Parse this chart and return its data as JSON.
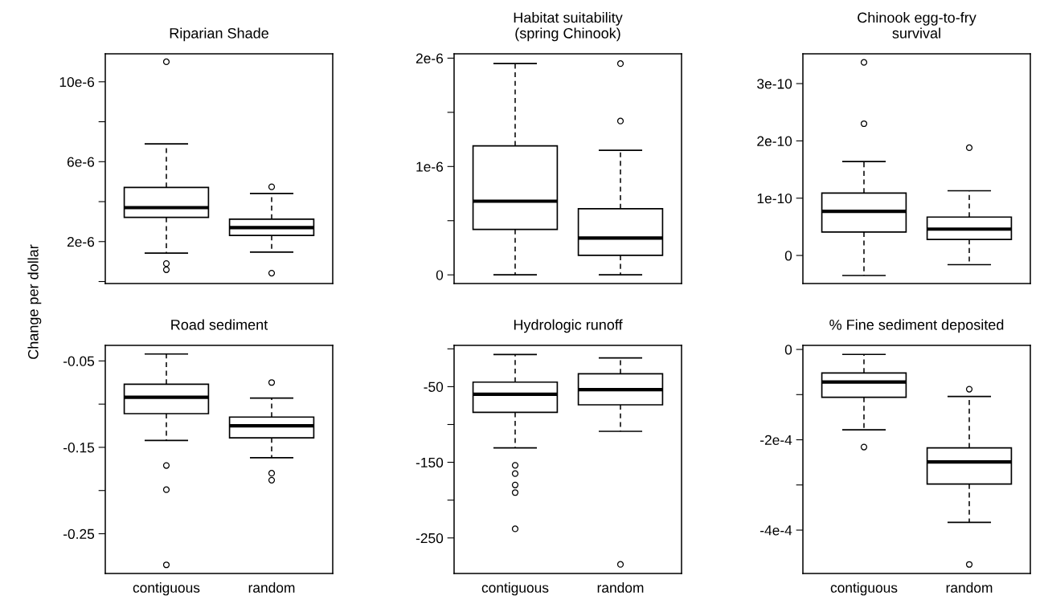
{
  "chart_data": [
    {
      "type": "box",
      "title": "Riparian Shade",
      "ylabel": "Change per dollar",
      "categories": [
        null,
        null
      ],
      "tick_labels": "y",
      "marker": "circle",
      "ylim": [
        -1e-07,
        1.14e-05
      ],
      "yticks": [
        {
          "value": 0,
          "label": null
        },
        {
          "value": 2e-06,
          "label": "2e-6"
        },
        {
          "value": 4e-06,
          "label": null
        },
        {
          "value": 6e-06,
          "label": "6e-6"
        },
        {
          "value": 8e-06,
          "label": null
        },
        {
          "value": 1e-05,
          "label": "10e-6"
        }
      ],
      "boxes": [
        {
          "low": 1.42e-06,
          "q1": 3.21e-06,
          "median": 3.7e-06,
          "q3": 4.71e-06,
          "high": 6.89e-06,
          "outliers": [
            1.1e-05,
            9e-07,
            5.9e-07
          ]
        },
        {
          "low": 1.47e-06,
          "q1": 2.31e-06,
          "median": 2.7e-06,
          "q3": 3.12e-06,
          "high": 4.41e-06,
          "outliers": [
            4.74e-06,
            4.2e-07
          ]
        }
      ]
    },
    {
      "type": "box",
      "title": "Habitat suitability\n(spring Chinook)",
      "categories": [
        null,
        null
      ],
      "tick_labels": "y",
      "marker": "circle",
      "ylim": [
        -8e-08,
        2.04e-06
      ],
      "yticks": [
        0,
        {
          "value": 5e-07,
          "label": null
        },
        {
          "value": 1e-06,
          "label": "1e-6"
        },
        {
          "value": 1.5e-06,
          "label": null
        },
        {
          "value": 2e-06,
          "label": "2e-6"
        }
      ],
      "boxes": [
        {
          "low": 0,
          "q1": 4.2e-07,
          "median": 6.8e-07,
          "q3": 1.19e-06,
          "high": 1.95e-06
        },
        {
          "low": 0,
          "q1": 1.8e-07,
          "median": 3.4e-07,
          "q3": 6.1e-07,
          "high": 1.15e-06,
          "outliers": [
            1.95e-06,
            1.42e-06
          ]
        }
      ]
    },
    {
      "type": "box",
      "title": "Chinook egg-to-fry\nsurvival",
      "categories": [
        null,
        null
      ],
      "tick_labels": "y",
      "marker": "circle",
      "ylim": [
        -4.9e-11,
        3.52e-10
      ],
      "yticks": [
        0,
        {
          "value": 1e-10,
          "label": "1e-10"
        },
        {
          "value": 2e-10,
          "label": "2e-10"
        },
        {
          "value": 3e-10,
          "label": "3e-10"
        }
      ],
      "boxes": [
        {
          "low": -3.5e-11,
          "q1": 4.1e-11,
          "median": 7.7e-11,
          "q3": 1.09e-10,
          "high": 1.64e-10,
          "outliers": [
            3.37e-10,
            2.3e-10
          ]
        },
        {
          "low": -1.6e-11,
          "q1": 2.8e-11,
          "median": 4.6e-11,
          "q3": 6.7e-11,
          "high": 1.13e-10,
          "outliers": [
            1.88e-10
          ]
        }
      ]
    },
    {
      "type": "box",
      "title": "Road sediment",
      "categories": [
        "contiguous",
        "random"
      ],
      "marker": "circle",
      "ylim": [
        -0.296,
        -0.032
      ],
      "yticks": [
        -0.05,
        {
          "value": -0.1,
          "label": null
        },
        -0.15,
        {
          "value": -0.2,
          "label": null
        },
        -0.25
      ],
      "boxes": [
        {
          "low": -0.142,
          "q1": -0.111,
          "median": -0.092,
          "q3": -0.077,
          "high": -0.042,
          "outliers": [
            -0.171,
            -0.199,
            -0.286
          ]
        },
        {
          "low": -0.162,
          "q1": -0.139,
          "median": -0.125,
          "q3": -0.115,
          "high": -0.093,
          "outliers": [
            -0.075,
            -0.18,
            -0.188
          ]
        }
      ]
    },
    {
      "type": "box",
      "title": "Hydrologic runoff",
      "categories": [
        "contiguous",
        "random"
      ],
      "marker": "circle",
      "ylim": [
        -297,
        4.6
      ],
      "yticks": [
        {
          "value": 0,
          "label": null
        },
        -50,
        {
          "value": -100,
          "label": null
        },
        -150,
        {
          "value": -200,
          "label": null
        },
        -250
      ],
      "boxes": [
        {
          "low": -131,
          "q1": -84,
          "median": -60,
          "q3": -44,
          "high": -7.5,
          "outliers": [
            -154,
            -165,
            -180,
            -190,
            -238
          ]
        },
        {
          "low": -109,
          "q1": -74,
          "median": -54,
          "q3": -33,
          "high": -12,
          "outliers": [
            -285
          ]
        }
      ]
    },
    {
      "type": "box",
      "title": "% Fine sediment deposited",
      "categories": [
        "contiguous",
        "random"
      ],
      "marker": "circle",
      "ylim": [
        -0.000496,
        9e-06
      ],
      "yticks": [
        0,
        {
          "value": -0.0001,
          "label": null
        },
        {
          "value": -0.0002,
          "label": "-2e-4"
        },
        {
          "value": -0.0003,
          "label": null
        },
        {
          "value": -0.0004,
          "label": "-4e-4"
        }
      ],
      "boxes": [
        {
          "low": -0.000178,
          "q1": -0.000106,
          "median": -7.2e-05,
          "q3": -5.2e-05,
          "high": -1.1e-05,
          "outliers": [
            -0.000216
          ]
        },
        {
          "low": -0.000383,
          "q1": -0.000298,
          "median": -0.000249,
          "q3": -0.000218,
          "high": -0.000104,
          "outliers": [
            -8.8e-05,
            -0.000476
          ]
        }
      ]
    }
  ]
}
